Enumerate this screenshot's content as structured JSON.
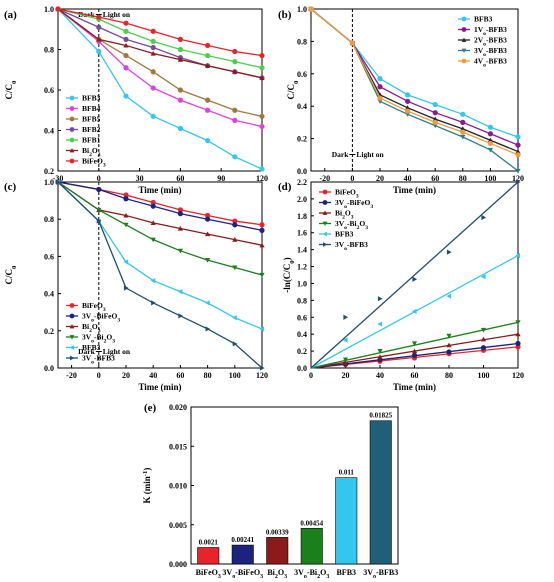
{
  "chart_data": [
    {
      "type": "line",
      "panel_label": "(a)",
      "xlabel": "Time (min)",
      "ylabel": "C/C",
      "ylabel_sub": "0",
      "xlim": [
        -30,
        120
      ],
      "ylim": [
        0.2,
        1.0
      ],
      "xticks": [
        "-30",
        "0",
        "30",
        "60",
        "90",
        "120"
      ],
      "yticks": [
        "0.2",
        "0.4",
        "0.6",
        "0.8",
        "1.0"
      ],
      "annotation_left": "Dark",
      "annotation_right": "Light on",
      "legend_position": "bottom-left",
      "series": [
        {
          "name": "BFB3",
          "name_sub": "",
          "color": "#33c7ee",
          "marker": "circle",
          "x": [
            -30,
            0,
            20,
            40,
            60,
            80,
            100,
            120
          ],
          "y": [
            1.0,
            0.79,
            0.57,
            0.47,
            0.41,
            0.35,
            0.27,
            0.21
          ]
        },
        {
          "name": "BFB4",
          "name_sub": "",
          "color": "#e040e0",
          "marker": "circle",
          "x": [
            -30,
            0,
            20,
            40,
            60,
            80,
            100,
            120
          ],
          "y": [
            1.0,
            0.84,
            0.71,
            0.61,
            0.55,
            0.5,
            0.45,
            0.42
          ]
        },
        {
          "name": "BFB5",
          "name_sub": "",
          "color": "#9c7a3c",
          "marker": "circle",
          "x": [
            -30,
            0,
            20,
            40,
            60,
            80,
            100,
            120
          ],
          "y": [
            1.0,
            0.85,
            0.77,
            0.69,
            0.6,
            0.55,
            0.5,
            0.47
          ]
        },
        {
          "name": "BFB2",
          "name_sub": "",
          "color": "#7a4a9c",
          "marker": "circle",
          "x": [
            -30,
            0,
            20,
            40,
            60,
            80,
            100,
            120
          ],
          "y": [
            1.0,
            0.91,
            0.85,
            0.81,
            0.76,
            0.72,
            0.69,
            0.66
          ]
        },
        {
          "name": "BFB1",
          "name_sub": "",
          "color": "#4cd04c",
          "marker": "circle",
          "x": [
            -30,
            0,
            20,
            40,
            60,
            80,
            100,
            120
          ],
          "y": [
            1.0,
            0.95,
            0.89,
            0.84,
            0.8,
            0.77,
            0.74,
            0.71
          ]
        },
        {
          "name": "Bi",
          "name_sub": "2",
          "name_mid": "O",
          "name_sub2": "3",
          "color": "#8b1a1a",
          "marker": "triangle",
          "x": [
            -30,
            0,
            20,
            40,
            60,
            80,
            100,
            120
          ],
          "y": [
            1.0,
            0.85,
            0.82,
            0.78,
            0.75,
            0.72,
            0.69,
            0.66
          ]
        },
        {
          "name": "BiFeO",
          "name_sub": "3",
          "color": "#e8232a",
          "marker": "circle",
          "x": [
            -30,
            0,
            20,
            40,
            60,
            80,
            100,
            120
          ],
          "y": [
            1.0,
            0.96,
            0.93,
            0.89,
            0.85,
            0.82,
            0.79,
            0.77
          ]
        }
      ]
    },
    {
      "type": "line",
      "panel_label": "(b)",
      "xlabel": "Time (min)",
      "ylabel": "C/C",
      "ylabel_sub": "0",
      "xlim": [
        -30,
        120
      ],
      "ylim": [
        0.0,
        1.0
      ],
      "xticks": [
        "-20",
        "0",
        "20",
        "40",
        "60",
        "80",
        "100",
        "120"
      ],
      "yticks": [
        "0.0",
        "0.2",
        "0.4",
        "0.6",
        "0.8",
        "1.0"
      ],
      "annotation_left": "Dark",
      "annotation_right": "Light on",
      "legend_position": "top-right",
      "series": [
        {
          "name": "BFB3",
          "label_html": "BFB3",
          "color": "#33c7ee",
          "marker": "circle",
          "x": [
            -30,
            0,
            20,
            40,
            60,
            80,
            100,
            120
          ],
          "y": [
            1.0,
            0.79,
            0.57,
            0.47,
            0.41,
            0.35,
            0.27,
            0.21
          ]
        },
        {
          "name": "1V",
          "label_html": "1V|o|-BFB3",
          "color": "#8b1a8b",
          "marker": "circle",
          "x": [
            -30,
            0,
            20,
            40,
            60,
            80,
            100,
            120
          ],
          "y": [
            1.0,
            0.79,
            0.52,
            0.43,
            0.36,
            0.3,
            0.23,
            0.16
          ]
        },
        {
          "name": "2V",
          "label_html": "2V|o|-BFB3",
          "color": "#222222",
          "marker": "triangle",
          "x": [
            -30,
            0,
            20,
            40,
            60,
            80,
            100,
            120
          ],
          "y": [
            1.0,
            0.79,
            0.47,
            0.39,
            0.32,
            0.26,
            0.19,
            0.12
          ]
        },
        {
          "name": "3V",
          "label_html": "3V|o|-BFB3",
          "color": "#2e7d8c",
          "marker": "triangle-down",
          "x": [
            -30,
            0,
            20,
            40,
            60,
            80,
            100,
            120
          ],
          "y": [
            1.0,
            0.79,
            0.43,
            0.35,
            0.28,
            0.21,
            0.13,
            0.0
          ]
        },
        {
          "name": "4V",
          "label_html": "4V|o|-BFB3",
          "color": "#f39a3c",
          "marker": "circle",
          "x": [
            -30,
            0,
            20,
            40,
            60,
            80,
            100,
            120
          ],
          "y": [
            1.0,
            0.79,
            0.45,
            0.37,
            0.3,
            0.24,
            0.17,
            0.1
          ]
        }
      ]
    },
    {
      "type": "line",
      "panel_label": "(c)",
      "xlabel": "Time (min)",
      "ylabel": "C/C",
      "ylabel_sub": "0",
      "xlim": [
        -30,
        120
      ],
      "ylim": [
        0.0,
        1.0
      ],
      "xticks": [
        "-20",
        "0",
        "20",
        "40",
        "60",
        "80",
        "100",
        "120"
      ],
      "yticks": [
        "0.0",
        "0.2",
        "0.4",
        "0.6",
        "0.8",
        "1.0"
      ],
      "annotation_left": "Dark",
      "annotation_right": "Light on",
      "legend_position": "bottom-left",
      "series": [
        {
          "name": "BiFeO3",
          "label_html": "BiFeO|3|",
          "color": "#e8232a",
          "marker": "circle",
          "x": [
            -30,
            0,
            20,
            40,
            60,
            80,
            100,
            120
          ],
          "y": [
            1.0,
            0.96,
            0.93,
            0.89,
            0.85,
            0.82,
            0.79,
            0.77
          ]
        },
        {
          "name": "3Vo-BiFeO3",
          "label_html": "3V|o|-BiFeO|3|",
          "color": "#1a237e",
          "marker": "circle",
          "x": [
            -30,
            0,
            20,
            40,
            60,
            80,
            100,
            120
          ],
          "y": [
            1.0,
            0.96,
            0.91,
            0.87,
            0.83,
            0.8,
            0.77,
            0.74
          ]
        },
        {
          "name": "Bi2O3",
          "label_html": "Bi|2|O|3|",
          "color": "#8b1a1a",
          "marker": "triangle",
          "x": [
            -30,
            0,
            20,
            40,
            60,
            80,
            100,
            120
          ],
          "y": [
            1.0,
            0.85,
            0.82,
            0.78,
            0.75,
            0.72,
            0.69,
            0.66
          ]
        },
        {
          "name": "3Vo-Bi2O3",
          "label_html": "3V|o|-Bi|2|O|3|",
          "color": "#1b7f1b",
          "marker": "triangle-down",
          "x": [
            -30,
            0,
            20,
            40,
            60,
            80,
            100,
            120
          ],
          "y": [
            1.0,
            0.85,
            0.77,
            0.69,
            0.63,
            0.58,
            0.54,
            0.5
          ]
        },
        {
          "name": "BFB3",
          "label_html": "BFB3",
          "color": "#33c7ee",
          "marker": "triangle-left",
          "x": [
            -30,
            0,
            20,
            40,
            60,
            80,
            100,
            120
          ],
          "y": [
            1.0,
            0.79,
            0.57,
            0.47,
            0.41,
            0.35,
            0.27,
            0.21
          ]
        },
        {
          "name": "3Vo-BFB3",
          "label_html": "3V|o|-BFB3",
          "color": "#1f4e6e",
          "marker": "triangle-right",
          "x": [
            -30,
            0,
            20,
            40,
            60,
            80,
            100,
            120
          ],
          "y": [
            1.0,
            0.79,
            0.43,
            0.35,
            0.28,
            0.21,
            0.13,
            0.0
          ]
        }
      ]
    },
    {
      "type": "scatter",
      "panel_label": "(d)",
      "xlabel": "Time (min)",
      "ylabel": "-ln(C/C",
      "ylabel_sub": "0",
      "ylabel_end": ")",
      "xlim": [
        0,
        120
      ],
      "ylim": [
        0.0,
        2.2
      ],
      "xticks": [
        "0",
        "20",
        "40",
        "60",
        "80",
        "100",
        "120"
      ],
      "yticks": [
        "0.0",
        "0.2",
        "0.4",
        "0.6",
        "0.8",
        "1.0",
        "1.2",
        "1.4",
        "1.6",
        "1.8",
        "2.0",
        "2.2"
      ],
      "legend_position": "top-left",
      "series": [
        {
          "name": "BiFeO3",
          "label_html": "BiFeO|3|",
          "color": "#e8232a",
          "marker": "circle",
          "k": 0.0021,
          "x": [
            20,
            40,
            60,
            80,
            100,
            120
          ],
          "y": [
            0.04,
            0.08,
            0.12,
            0.17,
            0.21,
            0.25
          ]
        },
        {
          "name": "3Vo-BiFeO3",
          "label_html": "3V|o|-BiFeO|3|",
          "color": "#1a237e",
          "marker": "circle",
          "k": 0.00241,
          "x": [
            20,
            40,
            60,
            80,
            100,
            120
          ],
          "y": [
            0.05,
            0.1,
            0.15,
            0.19,
            0.24,
            0.29
          ]
        },
        {
          "name": "Bi2O3",
          "label_html": "Bi|2|O|3|",
          "color": "#8b1a1a",
          "marker": "triangle",
          "k": 0.00339,
          "x": [
            20,
            40,
            60,
            80,
            100,
            120
          ],
          "y": [
            0.06,
            0.13,
            0.2,
            0.27,
            0.34,
            0.4
          ]
        },
        {
          "name": "3Vo-Bi2O3",
          "label_html": "3V|o|-Bi|2|O|3|",
          "color": "#1b7f1b",
          "marker": "triangle-down",
          "k": 0.00454,
          "x": [
            20,
            40,
            60,
            80,
            100,
            120
          ],
          "y": [
            0.1,
            0.2,
            0.29,
            0.38,
            0.45,
            0.54
          ]
        },
        {
          "name": "BFB3",
          "label_html": "BFB3",
          "color": "#33c7ee",
          "marker": "triangle-left",
          "k": 0.011,
          "x": [
            20,
            40,
            60,
            80,
            100,
            120
          ],
          "y": [
            0.33,
            0.52,
            0.67,
            0.85,
            1.08,
            1.33
          ]
        },
        {
          "name": "3Vo-BFB3",
          "label_html": "3V|o|-BFB3",
          "color": "#1f4e6e",
          "marker": "triangle-right",
          "k": 0.01825,
          "x": [
            20,
            40,
            60,
            80,
            100,
            120
          ],
          "y": [
            0.6,
            0.82,
            1.05,
            1.37,
            1.78,
            2.2
          ]
        }
      ]
    },
    {
      "type": "bar",
      "panel_label": "(e)",
      "xlabel": "",
      "ylabel": "K (min",
      "ylabel_sup": "-1",
      "ylabel_end": ")",
      "ylim": [
        0.0,
        0.02
      ],
      "yticks": [
        "0.000",
        "0.005",
        "0.010",
        "0.015",
        "0.020"
      ],
      "categories": [
        "BiFeO3",
        "3Vo-BiFeO3",
        "Bi2O3",
        "3Vo-Bi2O3",
        "BFB3",
        "3Vo-BFB3"
      ],
      "category_labels_html": [
        "BiFeO|3|",
        "3V|o|-BiFeO|3|",
        "Bi|2|O|3|",
        "3V|o|-Bi|2|O|3|",
        "BFB3",
        "3V|o|-BFB3"
      ],
      "values": [
        0.0021,
        0.00241,
        0.00339,
        0.00454,
        0.011,
        0.01825
      ],
      "value_labels": [
        "0.0021",
        "0.00241",
        "0.00339",
        "0.00454",
        "0.011",
        "0.01825"
      ],
      "colors": [
        "#e8232a",
        "#1a237e",
        "#8b1a1a",
        "#1b7f1b",
        "#33c7ee",
        "#1f5f78"
      ]
    }
  ]
}
